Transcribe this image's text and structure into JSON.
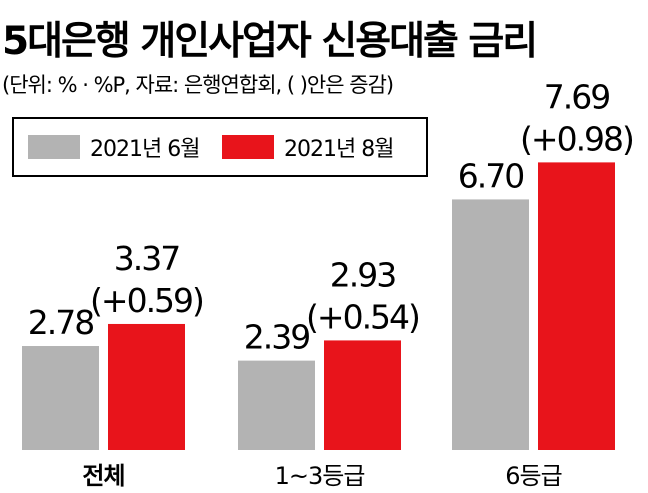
{
  "title": "5대은행 개인사업자 신용대출 금리",
  "subtitle": "(단위: % · %P, 자료: 은행연합회, (     )안은 증감)",
  "colors": {
    "series_0": "#b3b3b3",
    "series_1": "#e8141b"
  },
  "chart_data": {
    "type": "bar",
    "categories": [
      "전체",
      "1~3등급",
      "6등급"
    ],
    "series": [
      {
        "name": "2021년 6월",
        "values": [
          2.78,
          2.39,
          6.7
        ],
        "labels": [
          "2.78",
          "2.39",
          "6.70"
        ]
      },
      {
        "name": "2021년 8월",
        "values": [
          3.37,
          2.93,
          7.69
        ],
        "labels": [
          "3.37",
          "2.93",
          "7.69"
        ],
        "changes": [
          "(+0.59)",
          "(+0.54)",
          "(+0.98)"
        ]
      }
    ],
    "legend_position": "top-left",
    "grid": false,
    "ylim": [
      0,
      8.5
    ]
  }
}
